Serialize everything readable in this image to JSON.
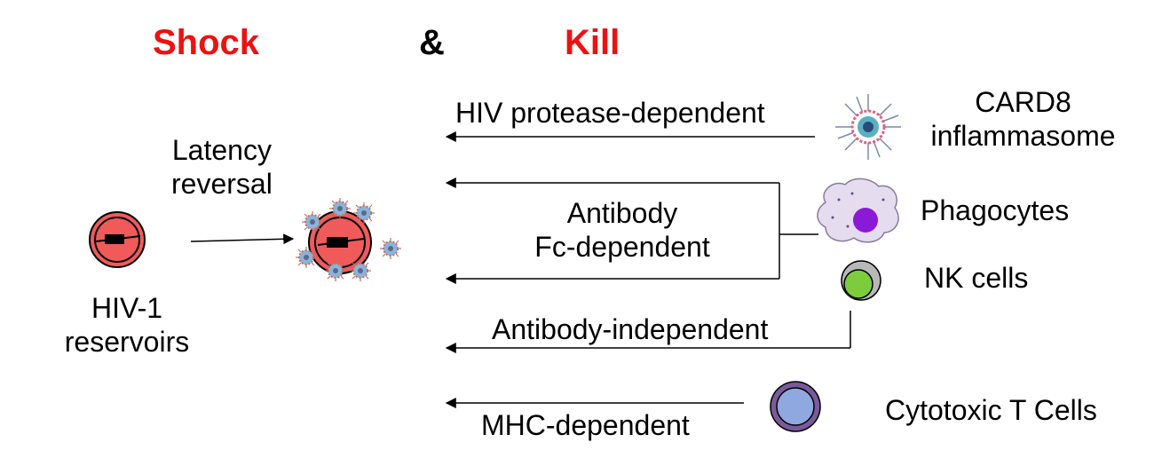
{
  "header": {
    "shock": "Shock",
    "ampersand": "&",
    "kill": "Kill"
  },
  "left": {
    "reservoir_line1": "HIV-1",
    "reservoir_line2": "reservoirs",
    "reversal_line1": "Latency",
    "reversal_line2": "reversal"
  },
  "pathways": {
    "protease": "HIV protease-dependent",
    "antibody_line1": "Antibody",
    "antibody_line2": "Fc-dependent",
    "antibody_independent": "Antibody-independent",
    "mhc": "MHC-dependent"
  },
  "effectors": {
    "card8_line1": "CARD8",
    "card8_line2": "inflammasome",
    "phagocytes": "Phagocytes",
    "nk": "NK cells",
    "ctl": "Cytotoxic T Cells"
  },
  "colors": {
    "accent_red": "#ee1111",
    "infected_cell": "#f05a5a",
    "phagocyte": "#e6dcf0",
    "phagocyte_nucleus": "#8a1ad8",
    "nk_inner": "#7ccc3c",
    "ctl_inner": "#8fa8e0",
    "ctl_ring": "#7a5a9a"
  }
}
